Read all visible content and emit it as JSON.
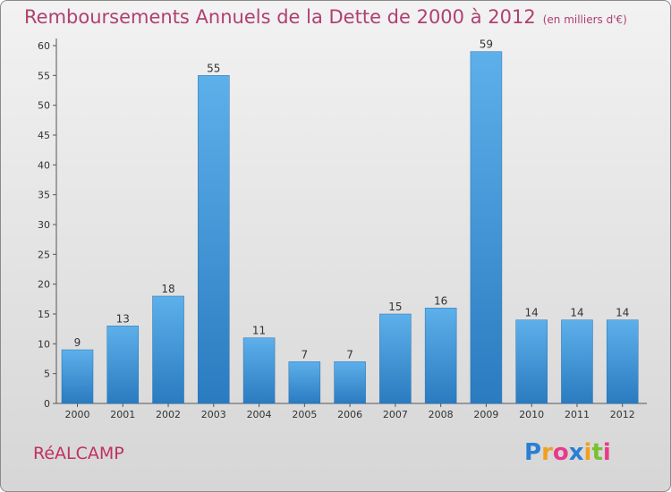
{
  "chart_data": {
    "type": "bar",
    "title": "Remboursements Annuels de la Dette de 2000 à 2012",
    "subtitle": "(en milliers d'€)",
    "categories": [
      "2000",
      "2001",
      "2002",
      "2003",
      "2004",
      "2005",
      "2006",
      "2007",
      "2008",
      "2009",
      "2010",
      "2011",
      "2012"
    ],
    "values": [
      9,
      13,
      18,
      55,
      11,
      7,
      7,
      15,
      16,
      59,
      14,
      14,
      14
    ],
    "ylim": [
      0,
      60
    ],
    "yticks": [
      0,
      5,
      10,
      15,
      20,
      25,
      30,
      35,
      40,
      45,
      50,
      55,
      60
    ],
    "grid": false,
    "bar_color": "#3a8fd6",
    "title_color": "#b04070"
  },
  "commune": "RéALCAMP",
  "logo": {
    "text": "Proxiti",
    "letters": [
      "P",
      "r",
      "o",
      "x",
      "i",
      "t",
      "i"
    ],
    "colors": [
      "#2a7fd4",
      "#f0a020",
      "#e83a8a",
      "#2a7fd4",
      "#f0a020",
      "#7ac030",
      "#e83a8a"
    ]
  }
}
